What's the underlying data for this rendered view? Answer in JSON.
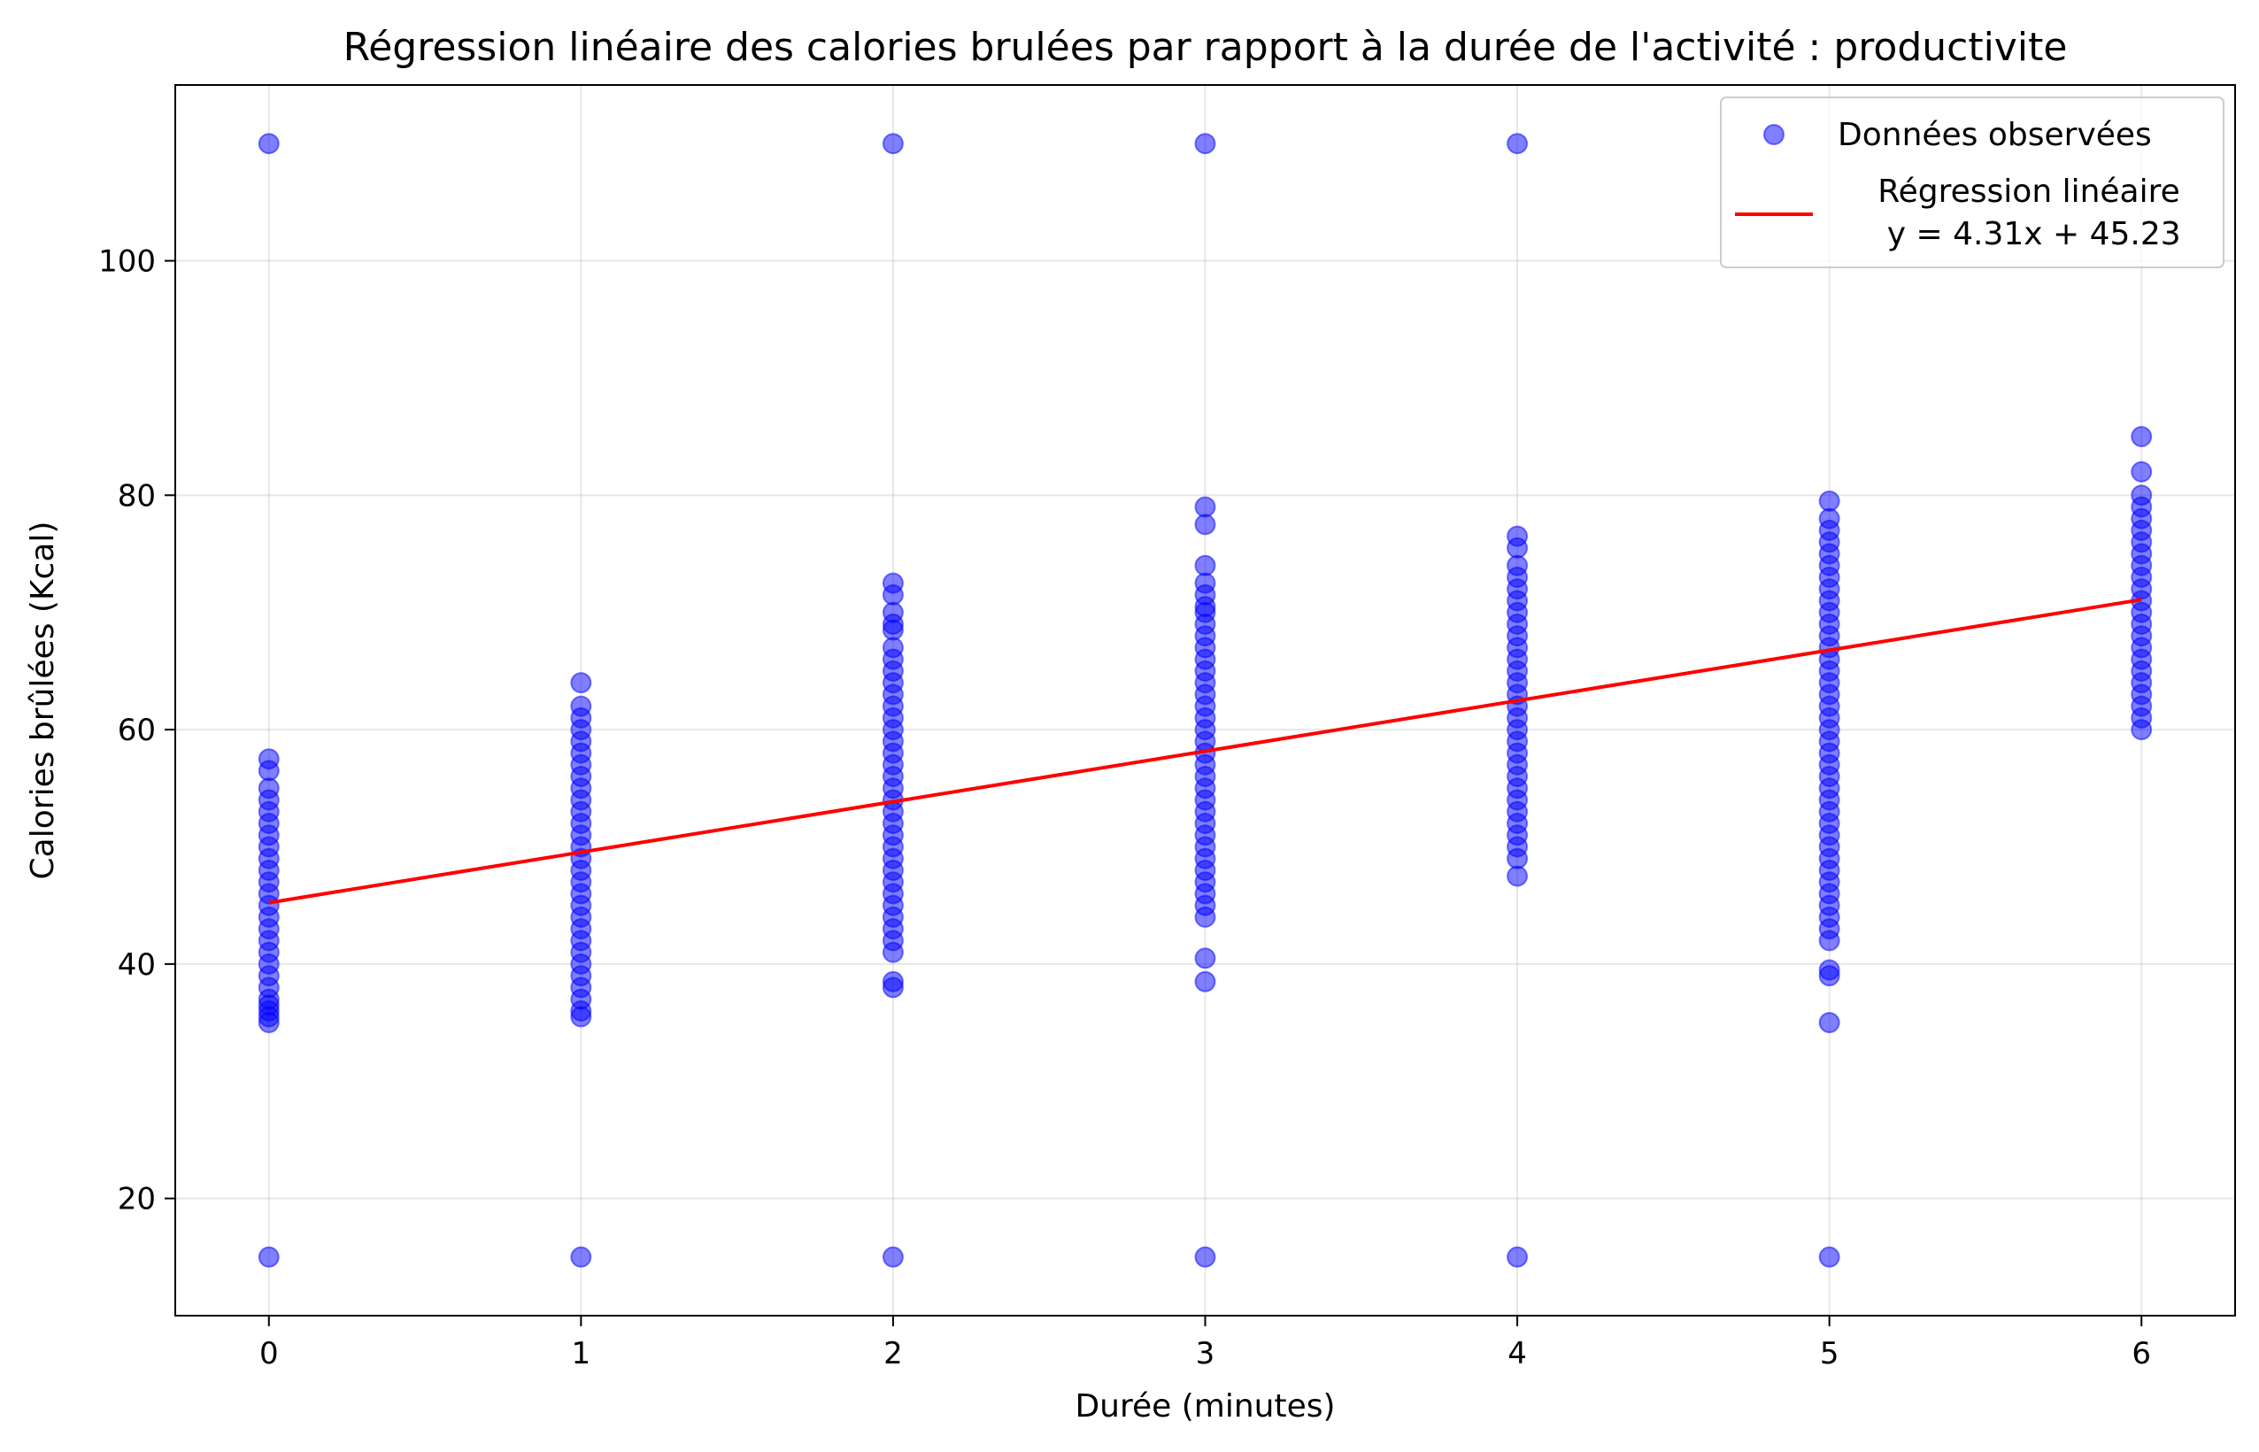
{
  "chart_data": {
    "type": "scatter",
    "title": "Régression linéaire des calories brulées par rapport à la durée de l'activité : productivite",
    "xlabel": "Durée (minutes)",
    "ylabel": "Calories brûlées (Kcal)",
    "xlim": [
      -0.3,
      6.3
    ],
    "ylim": [
      10,
      115
    ],
    "x_ticks": [
      0,
      1,
      2,
      3,
      4,
      5,
      6
    ],
    "y_ticks": [
      20,
      40,
      60,
      80,
      100
    ],
    "grid": true,
    "legend_position": "top-right",
    "series": [
      {
        "name": "Données observées",
        "kind": "scatter",
        "color": "#0000ff",
        "points": [
          {
            "x": 0,
            "values": [
              110,
              57.5,
              56.5,
              55,
              54,
              53,
              52,
              51,
              50,
              49,
              48,
              47,
              46,
              45,
              44,
              43,
              42,
              41,
              40,
              39,
              38,
              37,
              36.5,
              36,
              35.5,
              35,
              15
            ]
          },
          {
            "x": 1,
            "values": [
              64,
              62,
              61,
              60,
              59,
              58,
              57,
              56,
              55,
              54,
              53,
              52,
              51,
              50,
              49,
              48,
              47,
              46,
              45,
              44,
              43,
              42,
              41,
              40,
              39,
              38,
              37,
              36,
              35.5,
              15
            ]
          },
          {
            "x": 2,
            "values": [
              110,
              72.5,
              71.5,
              70,
              69,
              68.5,
              67,
              66,
              65,
              64,
              63,
              62,
              61,
              60,
              59,
              58,
              57,
              56,
              55,
              54,
              53,
              52,
              51,
              50,
              49,
              48,
              47,
              46,
              45,
              44,
              43,
              42,
              41,
              38.5,
              38,
              15
            ]
          },
          {
            "x": 3,
            "values": [
              110,
              79,
              77.5,
              74,
              72.5,
              71.5,
              70.5,
              70,
              69,
              68,
              67,
              66,
              65,
              64,
              63,
              62,
              61,
              60,
              59,
              58,
              57,
              56,
              55,
              54,
              53,
              52,
              51,
              50,
              49,
              48,
              47,
              46,
              45,
              44,
              40.5,
              38.5,
              15
            ]
          },
          {
            "x": 4,
            "values": [
              110,
              76.5,
              75.5,
              74,
              73,
              72,
              71,
              70,
              69,
              68,
              67,
              66,
              65,
              64,
              63,
              62,
              61,
              60,
              59,
              58,
              57,
              56,
              55,
              54,
              53,
              52,
              51,
              50,
              49,
              47.5,
              15
            ]
          },
          {
            "x": 5,
            "values": [
              79.5,
              78,
              77,
              76,
              75,
              74,
              73,
              72,
              71,
              70,
              69,
              68,
              67,
              66,
              65,
              64,
              63,
              62,
              61,
              60,
              59,
              58,
              57,
              56,
              55,
              54,
              53,
              52,
              51,
              50,
              49,
              48,
              47,
              46,
              45,
              44,
              43,
              42,
              39.5,
              39,
              35,
              15
            ]
          },
          {
            "x": 6,
            "values": [
              85,
              82,
              80,
              79,
              78,
              77,
              76,
              75,
              74,
              73,
              72,
              71,
              70,
              69,
              68,
              67,
              66,
              65,
              64,
              63,
              62,
              61,
              60
            ]
          }
        ]
      },
      {
        "name": "Régression linéaire\n y = 4.31x + 45.23",
        "kind": "line",
        "color": "#ff0000",
        "slope": 4.31,
        "intercept": 45.23,
        "x_range": [
          0,
          6
        ]
      }
    ],
    "legend": {
      "entries": [
        "Données observées",
        "Régression linéaire",
        " y = 4.31x + 45.23"
      ]
    }
  }
}
